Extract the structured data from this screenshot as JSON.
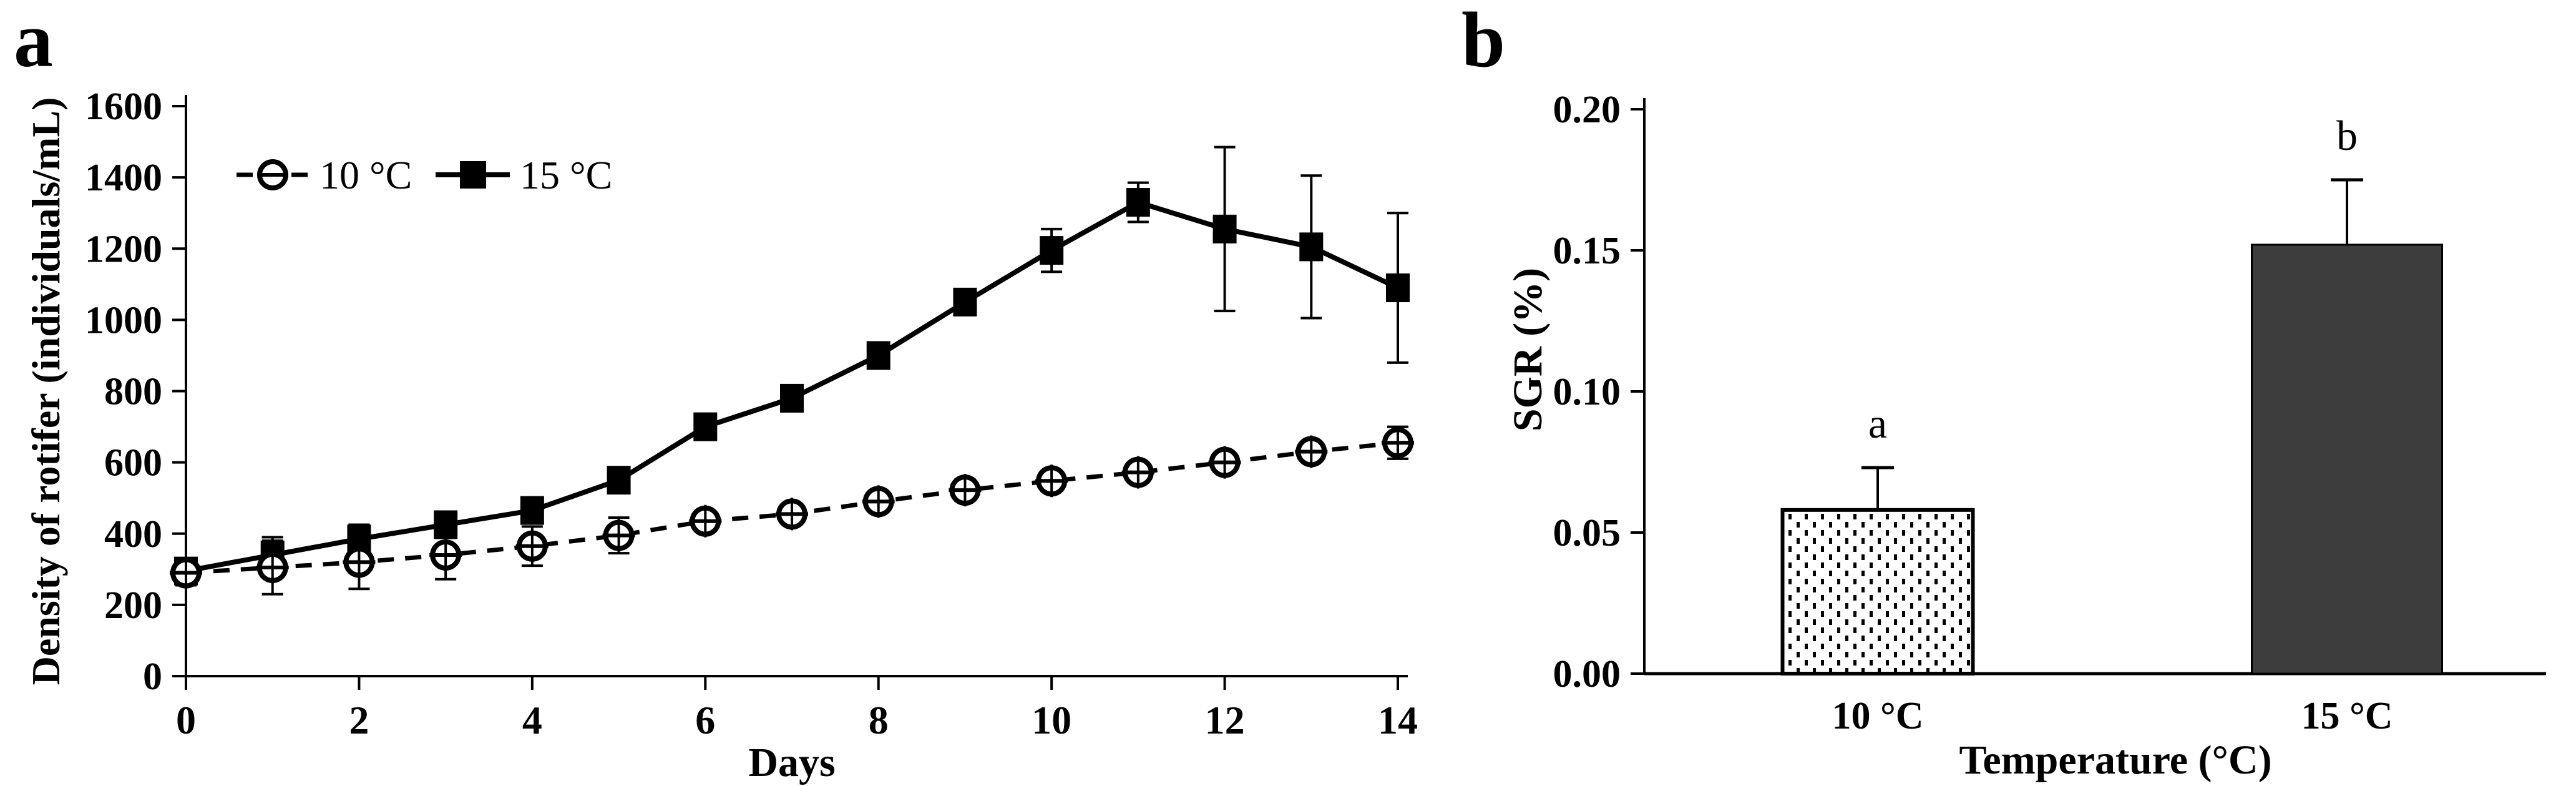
{
  "figure": {
    "panel_a_label": "a",
    "panel_b_label": "b",
    "ink_color": "#000000",
    "background": "#ffffff"
  },
  "chart_data": [
    {
      "type": "line",
      "panel": "a",
      "title": "",
      "xlabel": "Days",
      "ylabel": "Density of rotifer (individuals/mL)",
      "xlim": [
        0,
        14
      ],
      "ylim": [
        0,
        1600
      ],
      "xticks": [
        0,
        2,
        4,
        6,
        8,
        10,
        12,
        14
      ],
      "yticks": [
        0,
        200,
        400,
        600,
        800,
        1000,
        1200,
        1400,
        1600
      ],
      "grid": false,
      "legend_position": "top-left-inside",
      "x": [
        0,
        1,
        2,
        3,
        4,
        5,
        6,
        7,
        8,
        9,
        10,
        11,
        12,
        13,
        14
      ],
      "series": [
        {
          "name": "15 °C",
          "line_style": "solid",
          "marker": "filled-square",
          "color": "#000000",
          "values": [
            295,
            340,
            385,
            425,
            465,
            550,
            700,
            780,
            900,
            1050,
            1195,
            1330,
            1255,
            1205,
            1090
          ],
          "errors": [
            30,
            50,
            40,
            25,
            25,
            30,
            35,
            25,
            30,
            35,
            60,
            55,
            230,
            200,
            210
          ]
        },
        {
          "name": "10 °C",
          "line_style": "dashed",
          "marker": "open-circle",
          "color": "#000000",
          "values": [
            290,
            305,
            320,
            340,
            365,
            395,
            435,
            455,
            490,
            522,
            548,
            572,
            600,
            630,
            655
          ],
          "errors": [
            35,
            75,
            75,
            68,
            55,
            50,
            28,
            25,
            25,
            30,
            25,
            25,
            25,
            20,
            45
          ]
        }
      ]
    },
    {
      "type": "bar",
      "panel": "b",
      "title": "",
      "xlabel": "Temperature (°C)",
      "ylabel": "SGR (%)",
      "ylim": [
        0,
        0.2
      ],
      "yticks": [
        "0.00",
        "0.05",
        "0.10",
        "0.15",
        "0.20"
      ],
      "categories": [
        "10 °C",
        "15 °C"
      ],
      "values": [
        0.058,
        0.152
      ],
      "errors": [
        0.015,
        0.023
      ],
      "sig_letters": [
        "a",
        "b"
      ],
      "bar_styles": [
        "stipple-dots-white",
        "solid-dark-gray"
      ],
      "colors": {
        "bar_dark": "#3d3d3d",
        "bar_light": "#ffffff",
        "ink": "#000000"
      },
      "legend_position": "none",
      "grid": false
    }
  ]
}
